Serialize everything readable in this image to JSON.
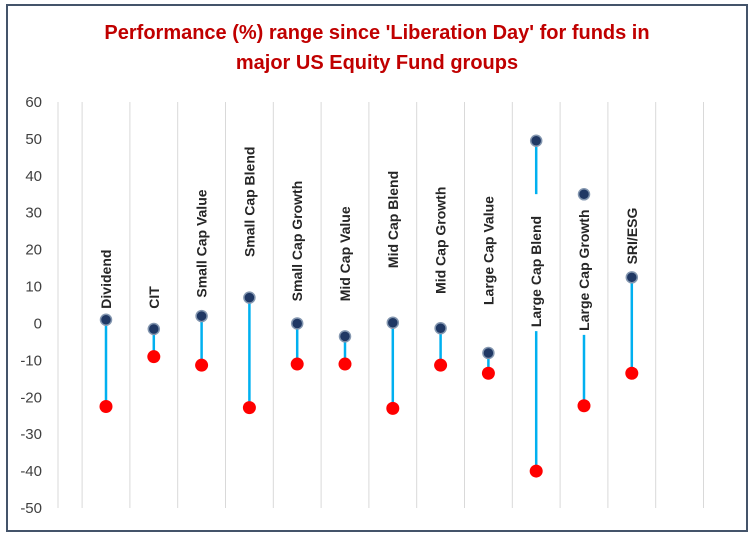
{
  "chart_data": {
    "type": "range",
    "title": "Performance (%) range since 'Liberation Day' for funds in major US Equity Fund groups",
    "title_lines": [
      "Performance (%) range since 'Liberation Day' for funds in",
      "major US Equity Fund groups"
    ],
    "ylim": [
      -50,
      60
    ],
    "yticks": [
      "60",
      "50",
      "40",
      "30",
      "20",
      "10",
      "0",
      "-10",
      "-20",
      "-30",
      "-40",
      "-50"
    ],
    "ytick_values": [
      60,
      50,
      40,
      30,
      20,
      10,
      0,
      -10,
      -20,
      -30,
      -40,
      -50
    ],
    "grid": "vertical",
    "legend": "none",
    "categories": [
      "Dividend",
      "CIT",
      "Small Cap Value",
      "Small Cap Blend",
      "Small Cap Growth",
      "Mid Cap Value",
      "Mid Cap Blend",
      "Mid Cap Growth",
      "Large Cap Value",
      "Large Cap Blend",
      "Large Cap Growth",
      "SRI/ESG"
    ],
    "series": [
      {
        "role": "high",
        "values": [
          1.0,
          -1.5,
          2.0,
          7.0,
          0.0,
          -3.5,
          0.2,
          -1.3,
          -8.0,
          49.5,
          35.0,
          12.5
        ]
      },
      {
        "role": "low",
        "values": [
          -22.5,
          -9.0,
          -11.3,
          -22.8,
          -11.0,
          -11.0,
          -23.0,
          -11.3,
          -13.5,
          -40.0,
          -22.3,
          -13.5
        ]
      }
    ],
    "label_anchor": [
      4,
      4,
      7,
      18,
      6,
      6,
      15,
      8,
      5,
      -1,
      -2,
      16
    ],
    "colors": {
      "high": "#203864",
      "low": "#ff0000",
      "line": "#00b0f0",
      "grid": "#d9d9d9",
      "title": "#c00000",
      "border": "#44546a"
    }
  }
}
